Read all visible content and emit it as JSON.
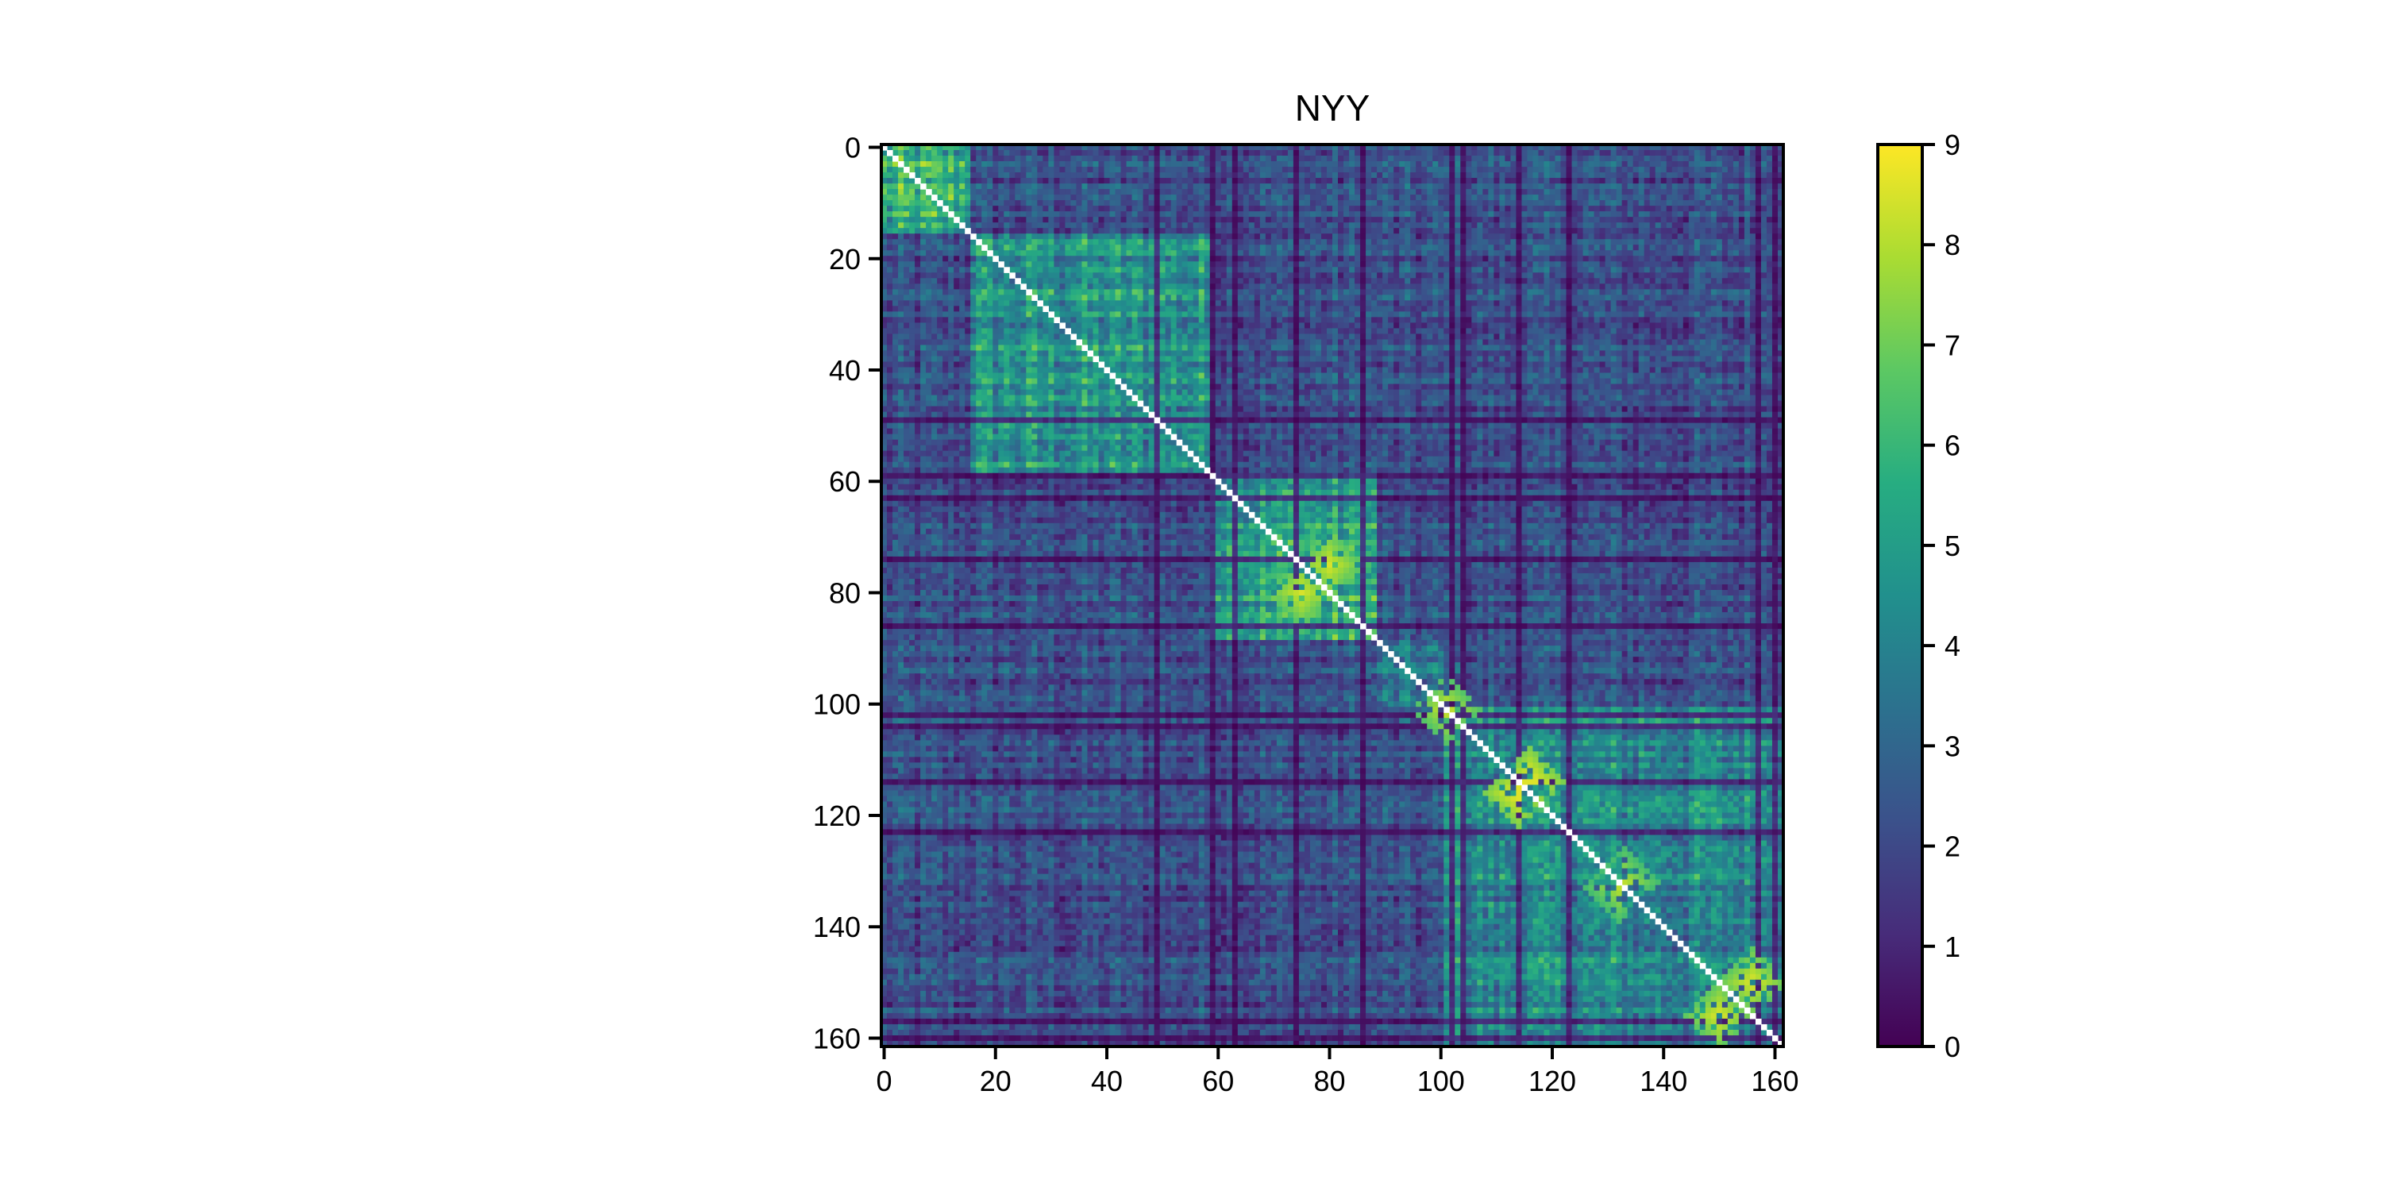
{
  "chart_data": {
    "type": "heatmap",
    "title": "NYY",
    "xlabel": "",
    "ylabel": "",
    "size": 162,
    "x_ticks": [
      0,
      20,
      40,
      60,
      80,
      100,
      120,
      140,
      160
    ],
    "y_ticks": [
      0,
      20,
      40,
      60,
      80,
      100,
      120,
      140,
      160
    ],
    "color_range": [
      0,
      9
    ],
    "colorbar_ticks": [
      0,
      1,
      2,
      3,
      4,
      5,
      6,
      7,
      8,
      9
    ],
    "colormap": "viridis",
    "diagonal_color": "#ffffff",
    "blocks": [
      {
        "start": 0,
        "end": 15,
        "level": 5.8
      },
      {
        "start": 16,
        "end": 58,
        "level": 4.9
      },
      {
        "start": 59,
        "end": 88,
        "level": 5.6
      },
      {
        "start": 89,
        "end": 100,
        "level": 3.6
      },
      {
        "start": 101,
        "end": 161,
        "level": 4.4
      }
    ],
    "hot_spots": [
      {
        "i": 75,
        "j": 80,
        "level": 8.5
      },
      {
        "i": 114,
        "j": 116,
        "level": 9.0
      },
      {
        "i": 150,
        "j": 156,
        "level": 8.6
      },
      {
        "i": 101,
        "j": 101,
        "level": 8.4
      },
      {
        "i": 132,
        "j": 133,
        "level": 8.1
      }
    ]
  }
}
